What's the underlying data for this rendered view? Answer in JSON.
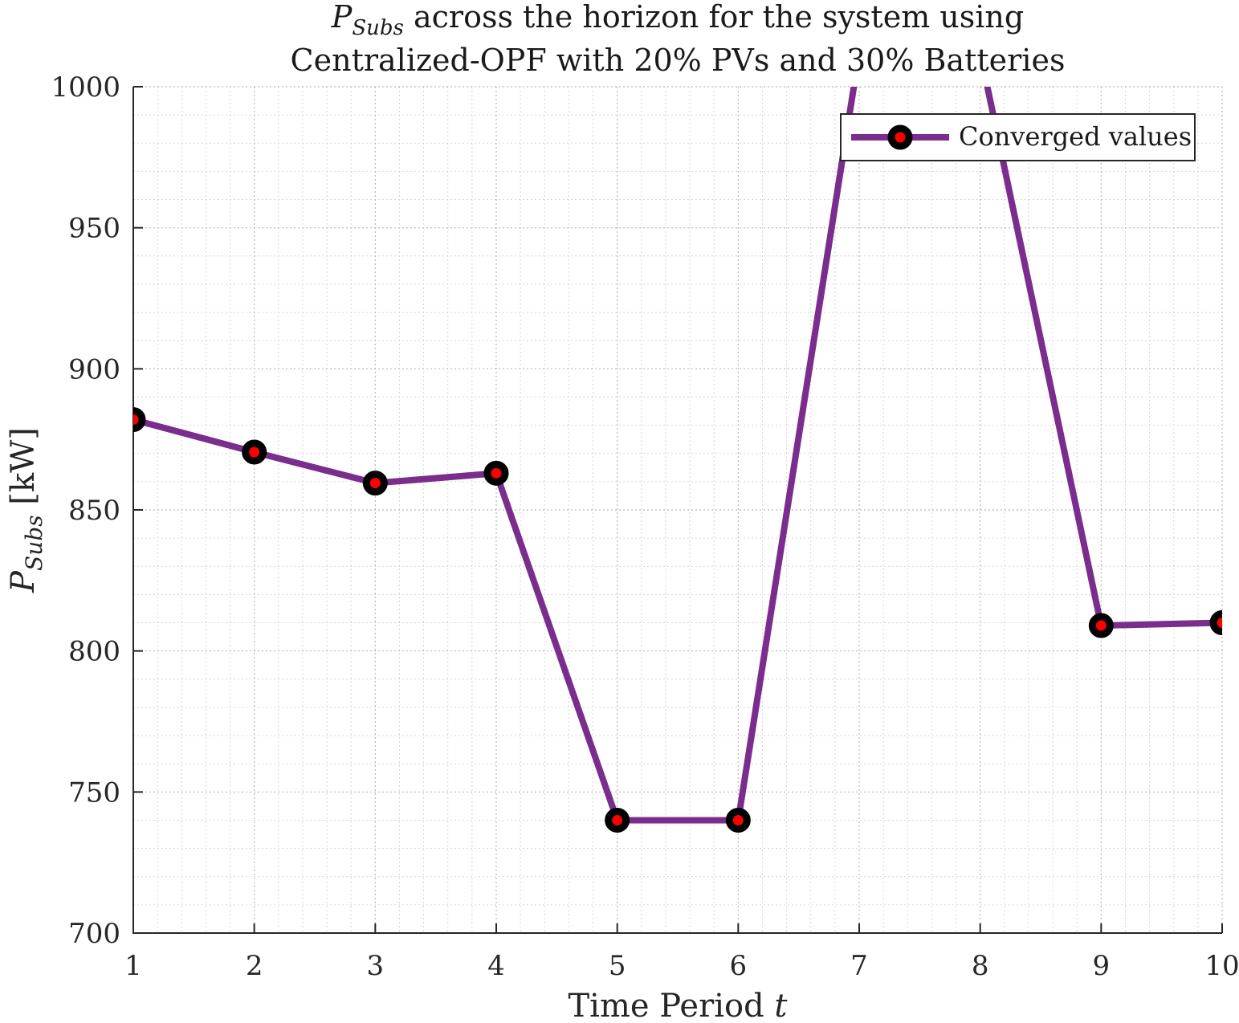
{
  "chart_data": {
    "type": "line",
    "title": {
      "line1_symbol": "P",
      "line1_subscript": "Subs",
      "line1_rest": " across the horizon for the system using",
      "line2": "Centralized-OPF with 20% PVs and 30% Batteries"
    },
    "xlabel": {
      "text": "Time Period ",
      "var": "t"
    },
    "ylabel": {
      "symbol": "P",
      "subscript": "Subs",
      "unit": " [kW]"
    },
    "xlim": [
      1,
      10
    ],
    "ylim": [
      700,
      1000
    ],
    "x_ticks": [
      "1",
      "2",
      "3",
      "4",
      "5",
      "6",
      "7",
      "8",
      "9",
      "10"
    ],
    "y_ticks": [
      "700",
      "750",
      "800",
      "850",
      "900",
      "950",
      "1000"
    ],
    "grid": true,
    "minor_grid": true,
    "legend_position": "top-right",
    "series": [
      {
        "name": "Converged values",
        "color": "#7b2d8e",
        "marker_color": "#ff0000",
        "marker_edge_color": "#000000",
        "x": [
          1,
          2,
          3,
          4,
          5,
          6,
          7,
          8,
          9,
          10
        ],
        "values": [
          882,
          870.5,
          859.5,
          863,
          740,
          740,
          1012,
          1012,
          809,
          810
        ]
      }
    ]
  }
}
